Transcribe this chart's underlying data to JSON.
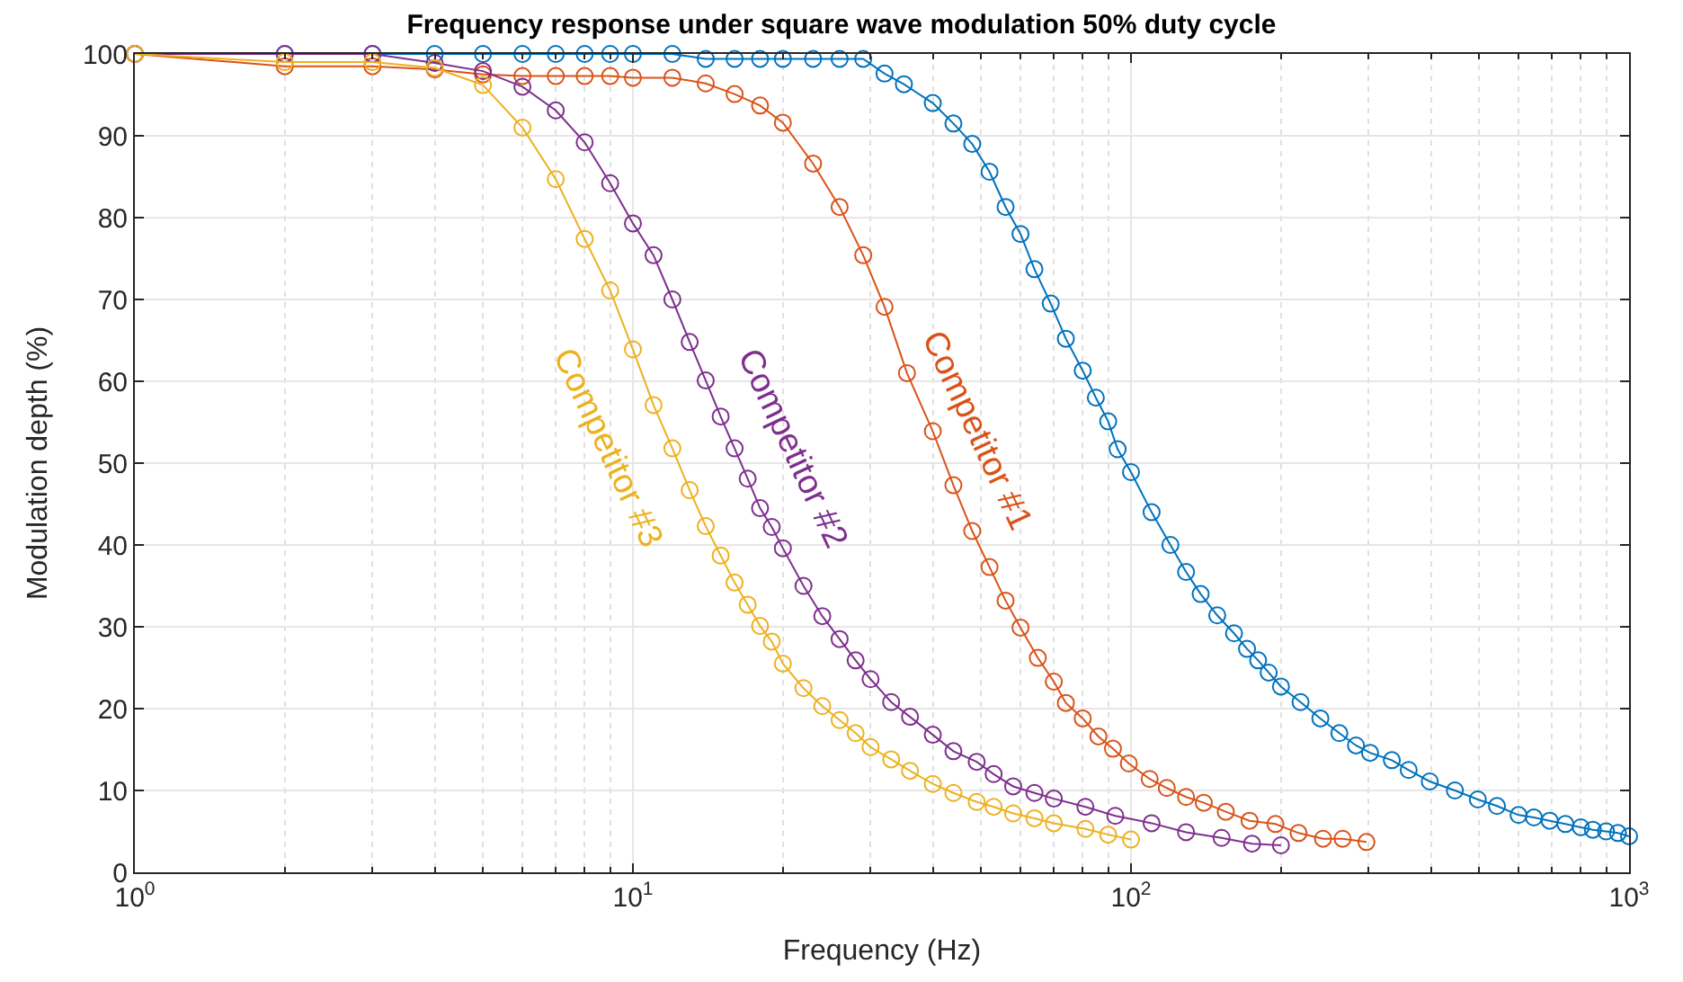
{
  "chart_data": {
    "type": "line",
    "title": "Frequency response under square wave modulation 50% duty cycle",
    "xlabel": "Frequency (Hz)",
    "ylabel": "Modulation depth (%)",
    "log": "x",
    "grid": true,
    "legend": false,
    "marker": "circle",
    "line_style": "solid",
    "xlim": [
      1,
      1000
    ],
    "ylim": [
      0,
      100
    ],
    "xticks": [
      {
        "value": 1,
        "label": "10$^{0}$"
      },
      {
        "value": 2,
        "label": null
      },
      {
        "value": 3,
        "label": null
      },
      {
        "value": 4,
        "label": null
      },
      {
        "value": 5,
        "label": null
      },
      {
        "value": 6,
        "label": null
      },
      {
        "value": 7,
        "label": null
      },
      {
        "value": 8,
        "label": null
      },
      {
        "value": 9,
        "label": null
      },
      {
        "value": 10,
        "label": "10$^{1}$"
      },
      {
        "value": 20,
        "label": null
      },
      {
        "value": 30,
        "label": null
      },
      {
        "value": 40,
        "label": null
      },
      {
        "value": 50,
        "label": null
      },
      {
        "value": 60,
        "label": null
      },
      {
        "value": 70,
        "label": null
      },
      {
        "value": 80,
        "label": null
      },
      {
        "value": 90,
        "label": null
      },
      {
        "value": 100,
        "label": "10$^{2}$"
      },
      {
        "value": 200,
        "label": null
      },
      {
        "value": 300,
        "label": null
      },
      {
        "value": 400,
        "label": null
      },
      {
        "value": 500,
        "label": null
      },
      {
        "value": 600,
        "label": null
      },
      {
        "value": 700,
        "label": null
      },
      {
        "value": 800,
        "label": null
      },
      {
        "value": 900,
        "label": null
      },
      {
        "value": 1000,
        "label": "10$^{3}$"
      }
    ],
    "yticks": [
      0,
      10,
      20,
      30,
      40,
      50,
      60,
      70,
      80,
      90,
      100
    ],
    "series": [
      {
        "color": "#0072bd",
        "x": [
          1,
          2,
          3,
          4,
          5,
          6,
          7,
          8,
          9,
          10,
          12,
          14,
          16,
          18,
          20,
          23,
          26,
          29,
          32,
          35,
          40,
          44,
          48,
          52,
          56,
          60,
          64,
          69,
          74,
          80,
          85,
          90,
          94,
          100,
          110,
          120,
          129,
          138,
          149,
          161,
          171,
          180,
          189,
          200,
          219,
          240,
          262,
          283,
          302,
          334,
          361,
          398,
          447,
          497,
          543,
          600,
          644,
          693,
          745,
          800,
          846,
          899,
          950,
          1000
        ],
        "values": [
          100,
          100,
          100,
          100,
          100,
          100,
          100,
          100,
          100,
          100,
          100,
          99.4,
          99.4,
          99.4,
          99.4,
          99.4,
          99.4,
          99.4,
          97.6,
          96.3,
          94.0,
          91.5,
          89.0,
          85.6,
          81.3,
          78.0,
          73.7,
          69.5,
          65.2,
          61.3,
          58.0,
          55.1,
          51.7,
          48.9,
          44.0,
          40.0,
          36.7,
          34.0,
          31.4,
          29.2,
          27.3,
          25.9,
          24.4,
          22.7,
          20.8,
          18.8,
          17.0,
          15.5,
          14.6,
          13.7,
          12.5,
          11.1,
          10.0,
          8.9,
          8.1,
          7.0,
          6.7,
          6.3,
          5.9,
          5.5,
          5.2,
          5.0,
          4.8,
          4.4
        ]
      },
      {
        "name": "Competitor #1",
        "color": "#d95319",
        "x": [
          1,
          2,
          3,
          4,
          5,
          6,
          7,
          8,
          9,
          10,
          12,
          14,
          16,
          18,
          20,
          23,
          26,
          29,
          32,
          35.5,
          40,
          44,
          48,
          52,
          56,
          60,
          65,
          70,
          74,
          80,
          86,
          92,
          99,
          109,
          118,
          129,
          140,
          155,
          173,
          195,
          217,
          243,
          266,
          297
        ],
        "values": [
          100,
          98.5,
          98.5,
          98.1,
          97.5,
          97.3,
          97.3,
          97.3,
          97.3,
          97.1,
          97.1,
          96.4,
          95.1,
          93.7,
          91.6,
          86.6,
          81.3,
          75.4,
          69.1,
          61.0,
          53.9,
          47.3,
          41.7,
          37.3,
          33.2,
          29.9,
          26.2,
          23.3,
          20.7,
          18.8,
          16.6,
          15.1,
          13.3,
          11.4,
          10.3,
          9.2,
          8.5,
          7.4,
          6.3,
          5.9,
          4.8,
          4.1,
          4.1,
          3.7
        ]
      },
      {
        "name": "Competitor #2",
        "color": "#7e2f8e",
        "x": [
          1,
          2,
          3,
          4,
          5,
          6,
          7,
          8,
          9,
          10,
          11,
          12,
          13,
          14,
          15,
          16,
          17,
          18,
          19,
          20,
          22,
          24,
          26,
          28,
          30,
          33,
          36,
          40,
          44,
          49,
          53,
          58,
          64,
          70,
          81,
          93,
          110,
          129,
          152,
          175,
          200
        ],
        "values": [
          100,
          100,
          100,
          98.9,
          97.9,
          96.0,
          93.1,
          89.2,
          84.2,
          79.3,
          75.4,
          70.0,
          64.8,
          60.1,
          55.7,
          51.8,
          48.1,
          44.5,
          42.2,
          39.6,
          35.0,
          31.3,
          28.5,
          25.9,
          23.6,
          20.8,
          19.0,
          16.8,
          14.8,
          13.5,
          12.0,
          10.5,
          9.7,
          9.0,
          8.0,
          6.9,
          6.0,
          4.9,
          4.2,
          3.5,
          3.3
        ]
      },
      {
        "name": "Competitor #3",
        "color": "#edb120",
        "x": [
          1,
          2,
          3,
          4,
          5,
          6,
          7,
          8,
          9,
          10,
          11,
          12,
          13,
          14,
          15,
          16,
          17,
          18,
          19,
          20,
          22,
          24,
          26,
          28,
          30,
          33,
          36,
          40,
          44,
          49,
          53,
          58,
          64,
          70,
          81,
          90,
          100
        ],
        "values": [
          100,
          99,
          99,
          98.3,
          96.2,
          91.0,
          84.7,
          77.4,
          71.1,
          63.9,
          57.1,
          51.8,
          46.7,
          42.3,
          38.7,
          35.4,
          32.7,
          30.1,
          28.2,
          25.5,
          22.5,
          20.3,
          18.6,
          17.0,
          15.3,
          13.8,
          12.4,
          10.8,
          9.7,
          8.6,
          8.0,
          7.2,
          6.6,
          6.0,
          5.3,
          4.6,
          4.0
        ]
      }
    ]
  }
}
